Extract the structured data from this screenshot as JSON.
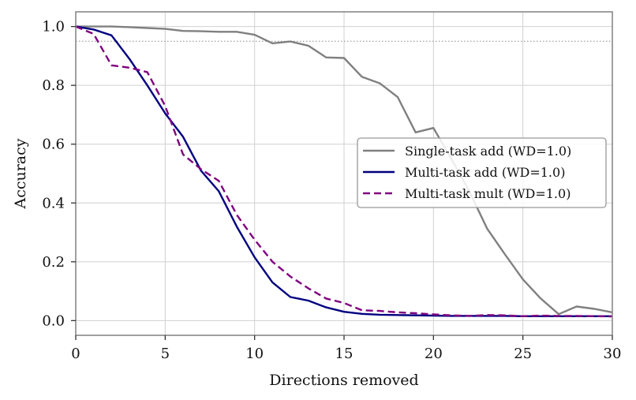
{
  "chart_data": {
    "type": "line",
    "title": "",
    "xlabel": "Directions removed",
    "ylabel": "Accuracy",
    "xlim": [
      0,
      30
    ],
    "ylim": [
      -0.05,
      1.05
    ],
    "xticks": [
      0,
      5,
      10,
      15,
      20,
      25,
      30
    ],
    "yticks": [
      0.0,
      0.2,
      0.4,
      0.6,
      0.8,
      1.0
    ],
    "xtick_labels": [
      "0",
      "5",
      "10",
      "15",
      "20",
      "25",
      "30"
    ],
    "ytick_labels": [
      "0.0",
      "0.2",
      "0.4",
      "0.6",
      "0.8",
      "1.0"
    ],
    "grid": true,
    "legend_position": "center right",
    "reference_line": {
      "y": 0.95,
      "style": "dotted",
      "color": "#888888"
    },
    "x": [
      0,
      1,
      2,
      3,
      4,
      5,
      6,
      7,
      8,
      9,
      10,
      11,
      12,
      13,
      14,
      15,
      16,
      17,
      18,
      19,
      20,
      21,
      22,
      23,
      24,
      25,
      26,
      27,
      28,
      29,
      30
    ],
    "series": [
      {
        "name": "Single-task add (WD=1.0)",
        "color": "#808080",
        "style": "solid",
        "values": [
          1.0,
          1.0,
          1.0,
          0.998,
          0.995,
          0.992,
          0.985,
          0.984,
          0.982,
          0.982,
          0.972,
          0.943,
          0.949,
          0.935,
          0.895,
          0.893,
          0.829,
          0.807,
          0.76,
          0.64,
          0.655,
          0.55,
          0.44,
          0.313,
          0.225,
          0.14,
          0.075,
          0.022,
          0.048,
          0.04,
          0.028
        ]
      },
      {
        "name": "Multi-task add (WD=1.0)",
        "color": "#000080",
        "style": "solid",
        "values": [
          1.0,
          0.99,
          0.97,
          0.89,
          0.8,
          0.705,
          0.625,
          0.51,
          0.44,
          0.32,
          0.215,
          0.13,
          0.08,
          0.068,
          0.045,
          0.03,
          0.023,
          0.02,
          0.019,
          0.018,
          0.017,
          0.016,
          0.016,
          0.016,
          0.016,
          0.015,
          0.015,
          0.015,
          0.015,
          0.015,
          0.015
        ]
      },
      {
        "name": "Multi-task mult (WD=1.0)",
        "color": "#800080",
        "style": "dashed",
        "values": [
          1.0,
          0.975,
          0.868,
          0.86,
          0.845,
          0.73,
          0.565,
          0.515,
          0.475,
          0.36,
          0.275,
          0.2,
          0.15,
          0.11,
          0.075,
          0.06,
          0.035,
          0.033,
          0.028,
          0.025,
          0.021,
          0.018,
          0.016,
          0.019,
          0.018,
          0.015,
          0.017,
          0.016,
          0.016,
          0.015,
          0.014
        ]
      }
    ]
  }
}
